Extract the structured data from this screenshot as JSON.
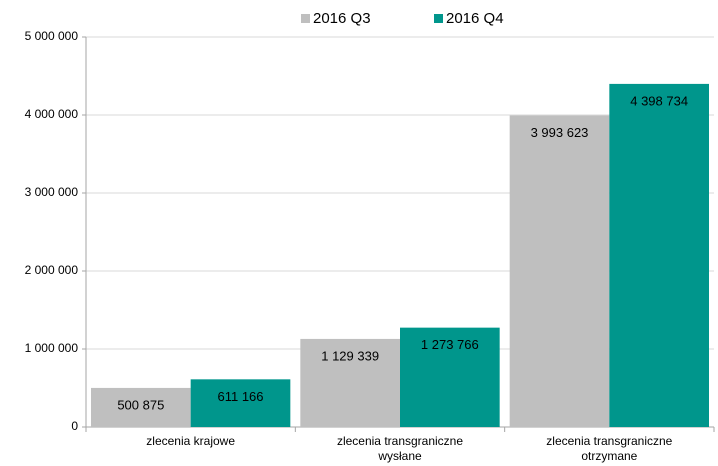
{
  "chart_data": {
    "type": "bar",
    "categories": [
      "zlecenia krajowe",
      "zlecenia transgraniczne wysłane",
      "zlecenia transgraniczne otrzymane"
    ],
    "series": [
      {
        "name": "2016 Q3",
        "color": "#bfbfbf",
        "values": [
          500875,
          1129339,
          3993623
        ],
        "value_labels": [
          "500 875",
          "1 129 339",
          "3 993 623"
        ]
      },
      {
        "name": "2016 Q4",
        "color": "#00968c",
        "values": [
          611166,
          1273766,
          4398734
        ],
        "value_labels": [
          "611 166",
          "1 273 766",
          "4 398 734"
        ]
      }
    ],
    "ylim": [
      0,
      5000000
    ],
    "yticks": [
      0,
      {
        "value": 1000000,
        "label": "1 000 000"
      },
      {
        "value": 2000000,
        "label": "2 000 000"
      },
      {
        "value": 3000000,
        "label": "3 000 000"
      },
      {
        "value": 4000000,
        "label": "4 000 000"
      },
      {
        "value": 5000000,
        "label": "5 000 000"
      }
    ],
    "grid": true,
    "legend": "top"
  }
}
